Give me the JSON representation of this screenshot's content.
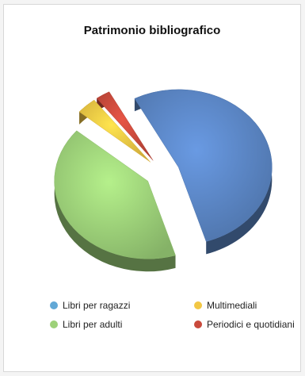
{
  "chart_data": {
    "type": "pie",
    "title": "Patrimonio bibliografico",
    "slices": [
      {
        "label": "Libri per ragazzi",
        "value": 53,
        "color": "#5b86c5"
      },
      {
        "label": "Libri per adulti",
        "value": 41,
        "color": "#9dd179"
      },
      {
        "label": "Multimediali",
        "value": 3.5,
        "color": "#f2c744"
      },
      {
        "label": "Periodici e quotidiani",
        "value": 2.5,
        "color": "#c94a3c"
      }
    ],
    "style": "3d-exploded",
    "legend_position": "bottom"
  }
}
